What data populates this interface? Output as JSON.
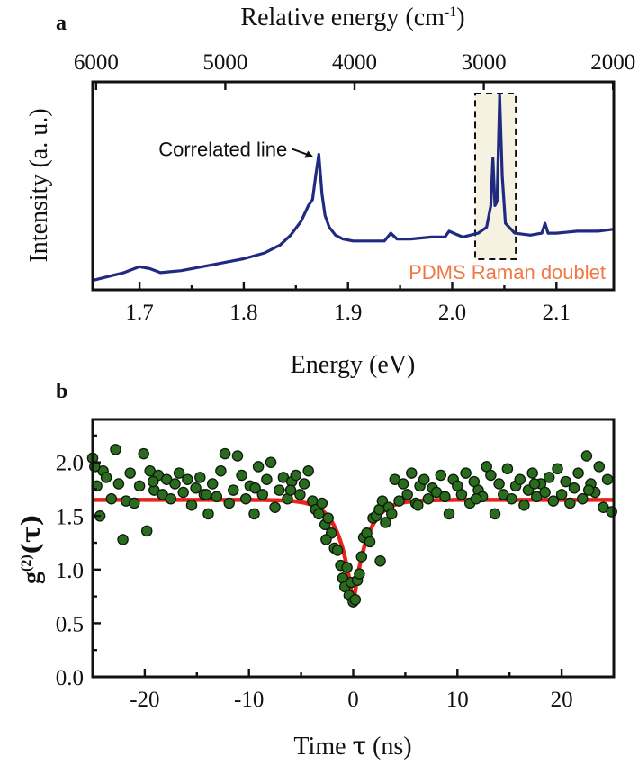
{
  "figure": {
    "panel_a_letter": "a",
    "panel_b_letter": "b"
  },
  "colors": {
    "spectrum": "#1f2a80",
    "fit": "#e8231c",
    "points_fill": "#2b6b1f",
    "points_stroke": "#0a1a08",
    "doublet_label": "#f07845",
    "highlight_fill": "#f5f2e2"
  },
  "chart_data": [
    {
      "type": "line",
      "panel": "a",
      "xlabel": "Energy (eV)",
      "ylabel": "Intensity (a. u.)",
      "top_axis_label_text": "Relative energy (cm",
      "top_axis_label_sup": "-1",
      "top_axis_label_end": ")",
      "xlim": [
        1.655,
        2.155
      ],
      "ylim": [
        0,
        1
      ],
      "yticks_shown": false,
      "xticks": [
        1.7,
        1.8,
        1.9,
        2.0,
        2.1
      ],
      "xtick_labels": [
        "1.7",
        "1.8",
        "1.9",
        "2.0",
        "2.1"
      ],
      "top_ticks": [
        {
          "energy_ev": 1.6583,
          "label": "6000"
        },
        {
          "energy_ev": 1.7823,
          "label": "5000"
        },
        {
          "energy_ev": 1.9063,
          "label": "4000"
        },
        {
          "energy_ev": 2.0303,
          "label": "3000"
        },
        {
          "energy_ev": 2.1543,
          "label": "2000"
        }
      ],
      "series": [
        {
          "x": [
            1.655,
            1.67,
            1.685,
            1.7,
            1.71,
            1.72,
            1.74,
            1.76,
            1.78,
            1.8,
            1.82,
            1.835,
            1.845,
            1.855,
            1.862,
            1.866,
            1.869,
            1.872,
            1.875,
            1.878,
            1.882,
            1.888,
            1.895,
            1.905,
            1.92,
            1.935,
            1.941,
            1.947,
            1.96,
            1.98,
            1.993,
            1.997,
            2.01,
            2.025,
            2.033,
            2.037,
            2.039,
            2.041,
            2.043,
            2.0455,
            2.048,
            2.051,
            2.06,
            2.075,
            2.086,
            2.089,
            2.092,
            2.1,
            2.12,
            2.14,
            2.155
          ],
          "y": [
            0.02,
            0.04,
            0.06,
            0.09,
            0.08,
            0.06,
            0.07,
            0.09,
            0.11,
            0.13,
            0.16,
            0.2,
            0.25,
            0.32,
            0.4,
            0.43,
            0.55,
            0.66,
            0.46,
            0.35,
            0.29,
            0.25,
            0.23,
            0.22,
            0.22,
            0.22,
            0.26,
            0.23,
            0.23,
            0.24,
            0.24,
            0.27,
            0.24,
            0.26,
            0.29,
            0.4,
            0.64,
            0.4,
            0.42,
            0.96,
            0.55,
            0.31,
            0.26,
            0.25,
            0.26,
            0.31,
            0.26,
            0.26,
            0.27,
            0.27,
            0.28
          ]
        }
      ],
      "annotations": [
        {
          "text": "Correlated line",
          "x": 1.872,
          "y": 0.66
        },
        {
          "text": "PDMS Raman doublet",
          "x_range": [
            2.022,
            2.061
          ]
        }
      ]
    },
    {
      "type": "scatter",
      "panel": "b",
      "xlabel_text": "Time",
      "xlabel_symbol": "τ",
      "xlabel_unit": "(ns)",
      "ylabel_base": "g",
      "ylabel_sup": "(2)",
      "ylabel_arg": "(τ)",
      "xlim": [
        -25,
        25
      ],
      "ylim": [
        0,
        2.4
      ],
      "xticks": [
        -20,
        -10,
        0,
        10,
        20
      ],
      "xtick_labels": [
        "-20",
        "-10",
        "0",
        "10",
        "20"
      ],
      "yticks": [
        0.0,
        0.5,
        1.0,
        1.5,
        2.0
      ],
      "ytick_labels": [
        "0.0",
        "0.5",
        "1.0",
        "1.5",
        "2.0"
      ],
      "fit": {
        "baseline": 1.65,
        "minimum": 0.66,
        "tau_ns": 1.3,
        "model": "baseline - depth*exp(-|t|/tau)"
      },
      "series": [
        {
          "x": [
            -25.0,
            -24.6,
            -24.3,
            -24.0,
            -23.7,
            -23.2,
            -22.8,
            -22.5,
            -22.1,
            -21.8,
            -21.4,
            -21.0,
            -20.5,
            -20.1,
            -19.8,
            -19.5,
            -19.1,
            -18.7,
            -18.3,
            -17.9,
            -17.5,
            -17.1,
            -16.7,
            -16.3,
            -15.9,
            -15.5,
            -15.1,
            -14.7,
            -14.3,
            -13.9,
            -13.5,
            -13.1,
            -12.7,
            -12.3,
            -11.9,
            -11.5,
            -11.1,
            -10.7,
            -10.3,
            -9.9,
            -9.5,
            -9.1,
            -8.7,
            -8.3,
            -7.9,
            -7.5,
            -7.1,
            -6.7,
            -6.3,
            -5.9,
            -5.5,
            -5.1,
            -4.7,
            -4.3,
            -3.9,
            -3.6,
            -3.3,
            -3.0,
            -2.7,
            -2.4,
            -2.1,
            -1.8,
            -1.5,
            -1.2,
            -1.0,
            -0.8,
            -0.6,
            -0.4,
            -0.2,
            0.0,
            0.2,
            0.4,
            0.6,
            0.8,
            1.0,
            1.3,
            1.6,
            1.9,
            2.2,
            2.5,
            2.8,
            3.1,
            3.4,
            3.7,
            4.0,
            4.4,
            4.8,
            5.2,
            5.6,
            6.0,
            6.4,
            6.8,
            7.2,
            7.6,
            8.0,
            8.4,
            8.8,
            9.2,
            9.6,
            10.0,
            10.4,
            10.8,
            11.2,
            11.6,
            12.0,
            12.4,
            12.8,
            13.2,
            13.6,
            14.0,
            14.4,
            14.8,
            15.2,
            15.6,
            16.0,
            16.4,
            16.8,
            17.2,
            17.6,
            18.0,
            18.4,
            18.8,
            19.2,
            19.6,
            20.0,
            20.4,
            20.8,
            21.2,
            21.6,
            22.0,
            22.4,
            22.8,
            23.2,
            23.6,
            24.0,
            24.4,
            24.8,
            -24.8,
            -19.2,
            -14.1,
            -9.4,
            -6.0,
            -2.6,
            2.6,
            6.2,
            11.8,
            17.4,
            22.6
          ],
          "y": [
            2.04,
            1.78,
            1.5,
            1.92,
            1.86,
            1.66,
            2.12,
            1.8,
            1.28,
            1.64,
            1.9,
            1.62,
            1.78,
            2.08,
            1.36,
            1.92,
            1.74,
            1.88,
            1.7,
            1.84,
            1.66,
            1.8,
            1.9,
            1.72,
            1.84,
            1.6,
            1.76,
            1.86,
            1.7,
            1.52,
            1.8,
            1.68,
            1.92,
            2.08,
            1.62,
            1.74,
            2.06,
            1.88,
            1.66,
            1.78,
            1.52,
            1.96,
            1.7,
            1.84,
            2.0,
            1.58,
            1.74,
            1.86,
            1.66,
            1.82,
            1.88,
            1.7,
            1.8,
            1.92,
            1.64,
            1.56,
            1.52,
            1.62,
            1.42,
            1.48,
            1.34,
            1.2,
            1.18,
            1.04,
            0.92,
            0.84,
            1.02,
            0.76,
            0.88,
            0.7,
            0.72,
            0.9,
            0.96,
            1.12,
            1.3,
            1.34,
            1.26,
            1.48,
            1.5,
            1.56,
            1.64,
            1.44,
            1.58,
            1.52,
            1.84,
            1.64,
            1.8,
            1.7,
            1.9,
            1.62,
            1.78,
            1.84,
            1.66,
            1.76,
            1.72,
            1.88,
            1.68,
            1.52,
            1.84,
            1.78,
            1.7,
            1.9,
            1.62,
            1.82,
            1.74,
            1.68,
            1.96,
            1.88,
            1.52,
            1.8,
            1.7,
            1.94,
            1.66,
            1.78,
            1.84,
            1.6,
            1.74,
            1.9,
            1.68,
            1.8,
            1.72,
            1.86,
            1.64,
            1.94,
            1.7,
            1.82,
            1.62,
            1.76,
            1.9,
            1.66,
            2.06,
            1.8,
            1.72,
            1.96,
            1.58,
            1.84,
            1.54,
            1.96,
            1.82,
            1.7,
            1.76,
            1.74,
            1.28,
            1.08,
            1.6,
            1.66,
            1.8,
            1.74
          ],
          "marker": "circle"
        }
      ]
    }
  ]
}
